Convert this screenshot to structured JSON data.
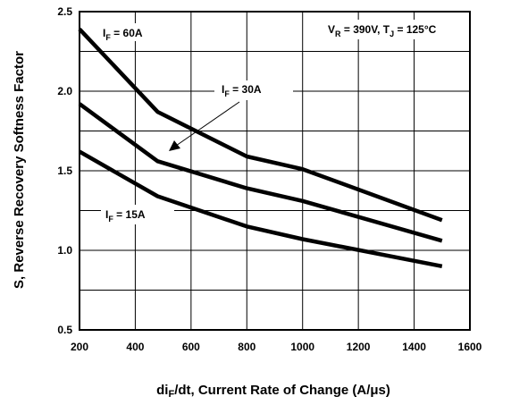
{
  "chart_data": {
    "type": "line",
    "title": "",
    "xlabel": {
      "main": "di",
      "sub": "F",
      "rest": "/dt, Current Rate of Change (A/μs)"
    },
    "ylabel": "S, Reverse Recovery Softness Factor",
    "xlim": [
      200,
      1600
    ],
    "ylim": [
      0.5,
      2.5
    ],
    "x_ticks": [
      "200",
      "400",
      "600",
      "800",
      "1000",
      "1200",
      "1400",
      "1600"
    ],
    "y_ticks": [
      "0.5",
      "1.0",
      "1.5",
      "2.0",
      "2.5"
    ],
    "grid": true,
    "series": [
      {
        "name": "IF = 60A",
        "x": [
          200,
          480,
          800,
          1000,
          1500
        ],
        "y": [
          2.39,
          1.87,
          1.59,
          1.51,
          1.19
        ]
      },
      {
        "name": "IF = 30A",
        "x": [
          200,
          480,
          800,
          1000,
          1500
        ],
        "y": [
          1.92,
          1.56,
          1.39,
          1.31,
          1.06
        ]
      },
      {
        "name": "IF = 15A",
        "x": [
          200,
          480,
          800,
          1000,
          1500
        ],
        "y": [
          1.62,
          1.34,
          1.15,
          1.07,
          0.9
        ]
      }
    ],
    "annotations": [
      {
        "id": "if60",
        "main": "I",
        "sub": "F",
        "rest": " = 60A"
      },
      {
        "id": "if30",
        "main": "I",
        "sub": "F",
        "rest": " = 30A"
      },
      {
        "id": "if15",
        "main": "I",
        "sub": "F",
        "rest": " = 15A"
      },
      {
        "id": "cond",
        "parts": [
          "V",
          "R",
          " = 390V, T",
          "J",
          " = 125°C"
        ]
      }
    ]
  }
}
